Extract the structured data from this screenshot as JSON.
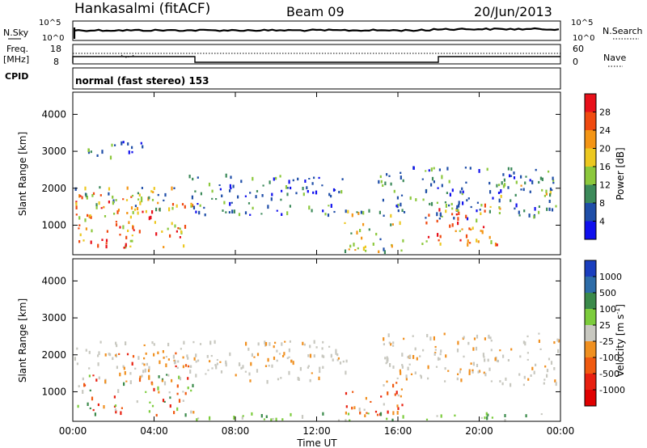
{
  "header": {
    "station": "Hankasalmi (fitACF)",
    "beam": "Beam 09",
    "date": "20/Jun/2013"
  },
  "top_panels": {
    "sky_label": "N.Sky",
    "search_label": "N.Search",
    "sky_ticks": [
      "10^5",
      "10^0"
    ],
    "search_ticks": [
      "10^5",
      "10^0"
    ],
    "freq_label": "Freq.",
    "freq_unit": "[MHz]",
    "freq_ticks": [
      "18",
      "8"
    ],
    "nave_label": "Nave",
    "nave_ticks": [
      "60",
      "0"
    ],
    "cpid_label": "CPID",
    "cpid_text": "normal (fast stereo) 153"
  },
  "chart_data": [
    {
      "type": "heatmap",
      "name": "power",
      "title": "",
      "xlabel": "Time UT",
      "ylabel": "Slant Range [km]",
      "xlim": [
        0,
        24
      ],
      "ylim": [
        200,
        4600
      ],
      "x_ticks": [
        "00:00",
        "04:00",
        "08:00",
        "12:00",
        "16:00",
        "20:00",
        "00:00"
      ],
      "y_ticks": [
        "1000",
        "2000",
        "3000",
        "4000"
      ],
      "colorbar": {
        "label": "Power [dB]",
        "levels": [
          "28",
          "24",
          "20",
          "16",
          "12",
          "8",
          "4"
        ],
        "colors": [
          "#e8101a",
          "#f04a10",
          "#f49515",
          "#ecc820",
          "#8cc83c",
          "#3c8a5a",
          "#1f4ea8",
          "#1010ee"
        ]
      },
      "regions": [
        {
          "t0": 0.1,
          "t1": 5.9,
          "r0": 400,
          "r1": 1900,
          "level": "strong"
        },
        {
          "t0": 0.0,
          "t1": 5.0,
          "r0": 1400,
          "r1": 2100,
          "level": "medium"
        },
        {
          "t0": 5.5,
          "t1": 13.5,
          "r0": 1300,
          "r1": 2400,
          "level": "weak"
        },
        {
          "t0": 0.5,
          "t1": 3.5,
          "r0": 2800,
          "r1": 3300,
          "level": "weak"
        },
        {
          "t0": 13.3,
          "t1": 16.3,
          "r0": 300,
          "r1": 1500,
          "level": "medium"
        },
        {
          "t0": 15.0,
          "t1": 23.9,
          "r0": 1200,
          "r1": 2600,
          "level": "weak"
        },
        {
          "t0": 17.0,
          "t1": 21.0,
          "r0": 500,
          "r1": 1600,
          "level": "strong"
        },
        {
          "t0": 21.0,
          "t1": 23.9,
          "r0": 1800,
          "r1": 2200,
          "level": "medium"
        }
      ]
    },
    {
      "type": "heatmap",
      "name": "velocity",
      "title": "",
      "xlabel": "Time UT",
      "ylabel": "Slant Range [km]",
      "xlim": [
        0,
        24
      ],
      "ylim": [
        200,
        4600
      ],
      "x_ticks": [
        "00:00",
        "04:00",
        "08:00",
        "12:00",
        "16:00",
        "20:00",
        "00:00"
      ],
      "y_ticks": [
        "1000",
        "2000",
        "3000",
        "4000"
      ],
      "colorbar": {
        "label": "Velocity [m s",
        "label_sup": "-1",
        "label_close": "]",
        "levels": [
          "1000",
          "500",
          "100",
          "25",
          "-25",
          "-100",
          "-500",
          "-1000"
        ],
        "colors": [
          "#1a3ebe",
          "#2d6ca8",
          "#3a8a4a",
          "#7ccc3c",
          "#c8c8c0",
          "#f09020",
          "#f05a10",
          "#e82010",
          "#e00000"
        ]
      },
      "regions": [
        {
          "t0": 0.2,
          "t1": 5.9,
          "r0": 400,
          "r1": 1500,
          "level": "mixed"
        },
        {
          "t0": 0.0,
          "t1": 13.5,
          "r0": 1300,
          "r1": 2400,
          "level": "grey"
        },
        {
          "t0": 2.0,
          "t1": 6.0,
          "r0": 1700,
          "r1": 2100,
          "level": "negative"
        },
        {
          "t0": 13.3,
          "t1": 16.3,
          "r0": 300,
          "r1": 1300,
          "level": "negative"
        },
        {
          "t0": 15.0,
          "t1": 23.9,
          "r0": 1200,
          "r1": 2600,
          "level": "grey"
        },
        {
          "t0": 6.0,
          "t1": 23.9,
          "r0": 250,
          "r1": 450,
          "level": "positive"
        }
      ]
    }
  ]
}
